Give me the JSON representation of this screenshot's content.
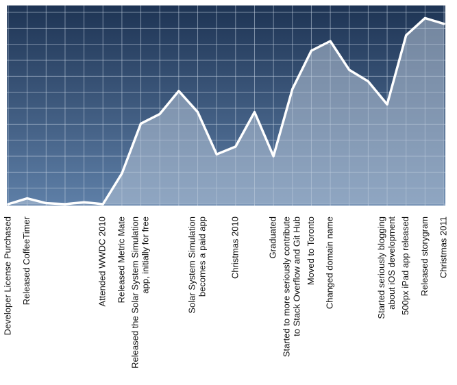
{
  "chart_data": {
    "type": "area",
    "title": "",
    "xlabel": "",
    "ylabel": "",
    "ylim": [
      0,
      100
    ],
    "grid": true,
    "legend": "none",
    "colors": {
      "background_top": "#1e3454",
      "background_bottom": "#5e7fa7",
      "fill": "#b8c6d8",
      "line": "#ffffff",
      "grid": "#c9d5e4",
      "text": "#111111"
    },
    "values": [
      0,
      3,
      0.5,
      0,
      1,
      0,
      16,
      42,
      47,
      59,
      48,
      26,
      30,
      48,
      25,
      60,
      80,
      85,
      70,
      64,
      52,
      88,
      97,
      94
    ],
    "annotations": [
      {
        "index": 0,
        "lines": [
          "Developer License Purchased"
        ]
      },
      {
        "index": 1,
        "lines": [
          "Released CoffeeTimer"
        ]
      },
      {
        "index": 5,
        "lines": [
          "Attended WWDC 2010"
        ]
      },
      {
        "index": 6,
        "lines": [
          "Released Metric Mate"
        ]
      },
      {
        "index": 7,
        "lines": [
          "Released the Solar System Simulation",
          "app, initially for free"
        ]
      },
      {
        "index": 10,
        "lines": [
          "Solar System Simulation",
          "becomes a paid app"
        ]
      },
      {
        "index": 12,
        "lines": [
          "Christmas 2010"
        ]
      },
      {
        "index": 14,
        "lines": [
          "Graduated"
        ]
      },
      {
        "index": 15,
        "lines": [
          "Started to more seriously contribute",
          "to Stack Overflow and Git Hub"
        ]
      },
      {
        "index": 16,
        "lines": [
          "Moved to Toronto"
        ]
      },
      {
        "index": 17,
        "lines": [
          "Changed domain name"
        ]
      },
      {
        "index": 20,
        "lines": [
          "Started seriously blogging",
          "about iOS development"
        ]
      },
      {
        "index": 21,
        "lines": [
          "500px iPad app released"
        ]
      },
      {
        "index": 22,
        "lines": [
          "Released storygram"
        ]
      },
      {
        "index": 23,
        "lines": [
          "Christmas 2011"
        ]
      }
    ]
  }
}
